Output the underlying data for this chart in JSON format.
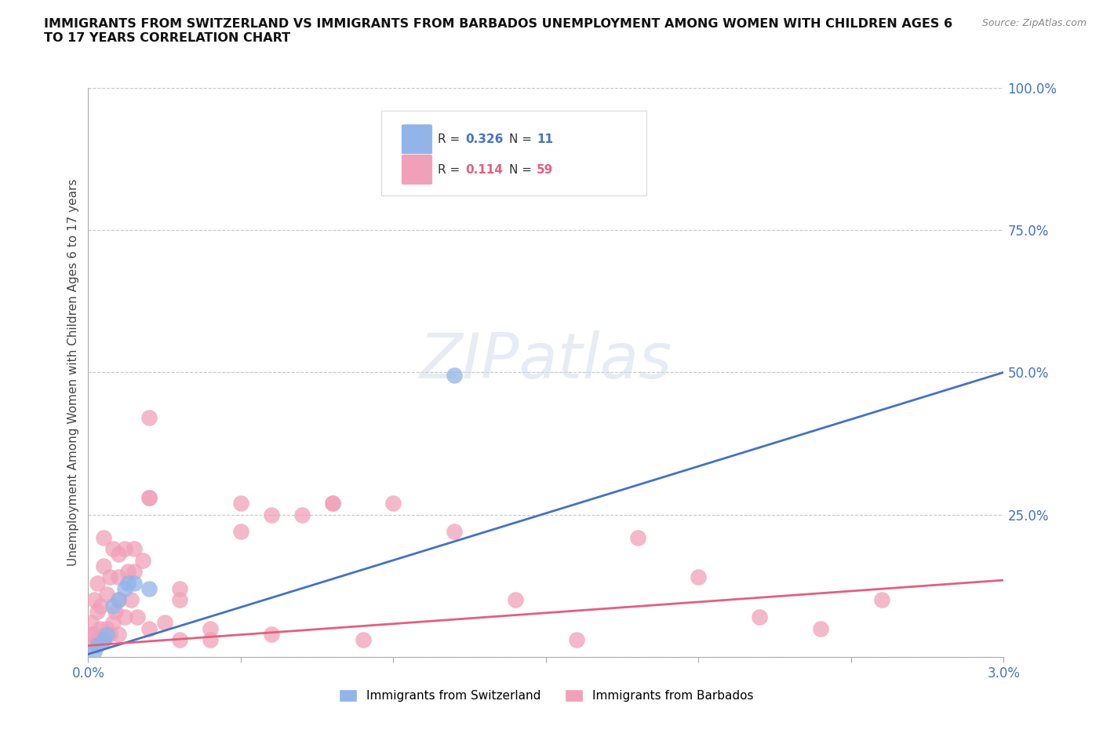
{
  "title": "IMMIGRANTS FROM SWITZERLAND VS IMMIGRANTS FROM BARBADOS UNEMPLOYMENT AMONG WOMEN WITH CHILDREN AGES 6\nTO 17 YEARS CORRELATION CHART",
  "source": "Source: ZipAtlas.com",
  "ylabel": "Unemployment Among Women with Children Ages 6 to 17 years",
  "xlim": [
    0.0,
    0.03
  ],
  "ylim": [
    0.0,
    1.0
  ],
  "xticks": [
    0.0,
    0.005,
    0.01,
    0.015,
    0.02,
    0.025,
    0.03
  ],
  "xtick_labels": [
    "0.0%",
    "",
    "",
    "",
    "",
    "",
    "3.0%"
  ],
  "yticks": [
    0.0,
    0.25,
    0.5,
    0.75,
    1.0
  ],
  "ytick_labels": [
    "",
    "25.0%",
    "50.0%",
    "75.0%",
    "100.0%"
  ],
  "r_switzerland": 0.326,
  "n_switzerland": 11,
  "r_barbados": 0.114,
  "n_barbados": 59,
  "color_switzerland": "#92b4e8",
  "color_barbados": "#f0a0b8",
  "line_color_switzerland": "#4472c4",
  "line_color_barbados": "#e06080",
  "background_color": "#ffffff",
  "grid_color": "#c8c8c8",
  "watermark_text": "ZIPatlas",
  "sw_line_x0": 0.0,
  "sw_line_y0": 0.005,
  "sw_line_x1": 0.03,
  "sw_line_y1": 0.5,
  "bb_line_x0": 0.0,
  "bb_line_y0": 0.02,
  "bb_line_x1": 0.03,
  "bb_line_y1": 0.135,
  "switzerland_x": [
    0.0002,
    0.0003,
    0.0005,
    0.0006,
    0.0008,
    0.001,
    0.0012,
    0.0013,
    0.0015,
    0.002,
    0.012
  ],
  "switzerland_y": [
    0.01,
    0.02,
    0.03,
    0.04,
    0.09,
    0.1,
    0.12,
    0.13,
    0.13,
    0.12,
    0.495
  ],
  "barbados_x": [
    0.0001,
    0.0001,
    0.0002,
    0.0002,
    0.0003,
    0.0003,
    0.0004,
    0.0004,
    0.0005,
    0.0005,
    0.0006,
    0.0006,
    0.0007,
    0.0007,
    0.0008,
    0.0008,
    0.0009,
    0.001,
    0.001,
    0.001,
    0.0012,
    0.0012,
    0.0013,
    0.0014,
    0.0015,
    0.0016,
    0.0018,
    0.002,
    0.002,
    0.002,
    0.0025,
    0.003,
    0.003,
    0.004,
    0.005,
    0.005,
    0.006,
    0.007,
    0.008,
    0.009,
    0.0001,
    0.0003,
    0.0005,
    0.001,
    0.0015,
    0.002,
    0.003,
    0.004,
    0.006,
    0.008,
    0.01,
    0.012,
    0.014,
    0.016,
    0.018,
    0.02,
    0.022,
    0.024,
    0.026
  ],
  "barbados_y": [
    0.02,
    0.06,
    0.04,
    0.1,
    0.03,
    0.13,
    0.05,
    0.09,
    0.03,
    0.16,
    0.05,
    0.11,
    0.04,
    0.14,
    0.06,
    0.19,
    0.08,
    0.04,
    0.1,
    0.18,
    0.07,
    0.19,
    0.15,
    0.1,
    0.15,
    0.07,
    0.17,
    0.05,
    0.28,
    0.42,
    0.06,
    0.1,
    0.03,
    0.03,
    0.27,
    0.22,
    0.25,
    0.25,
    0.27,
    0.03,
    0.04,
    0.08,
    0.21,
    0.14,
    0.19,
    0.28,
    0.12,
    0.05,
    0.04,
    0.27,
    0.27,
    0.22,
    0.1,
    0.03,
    0.21,
    0.14,
    0.07,
    0.05,
    0.1
  ]
}
